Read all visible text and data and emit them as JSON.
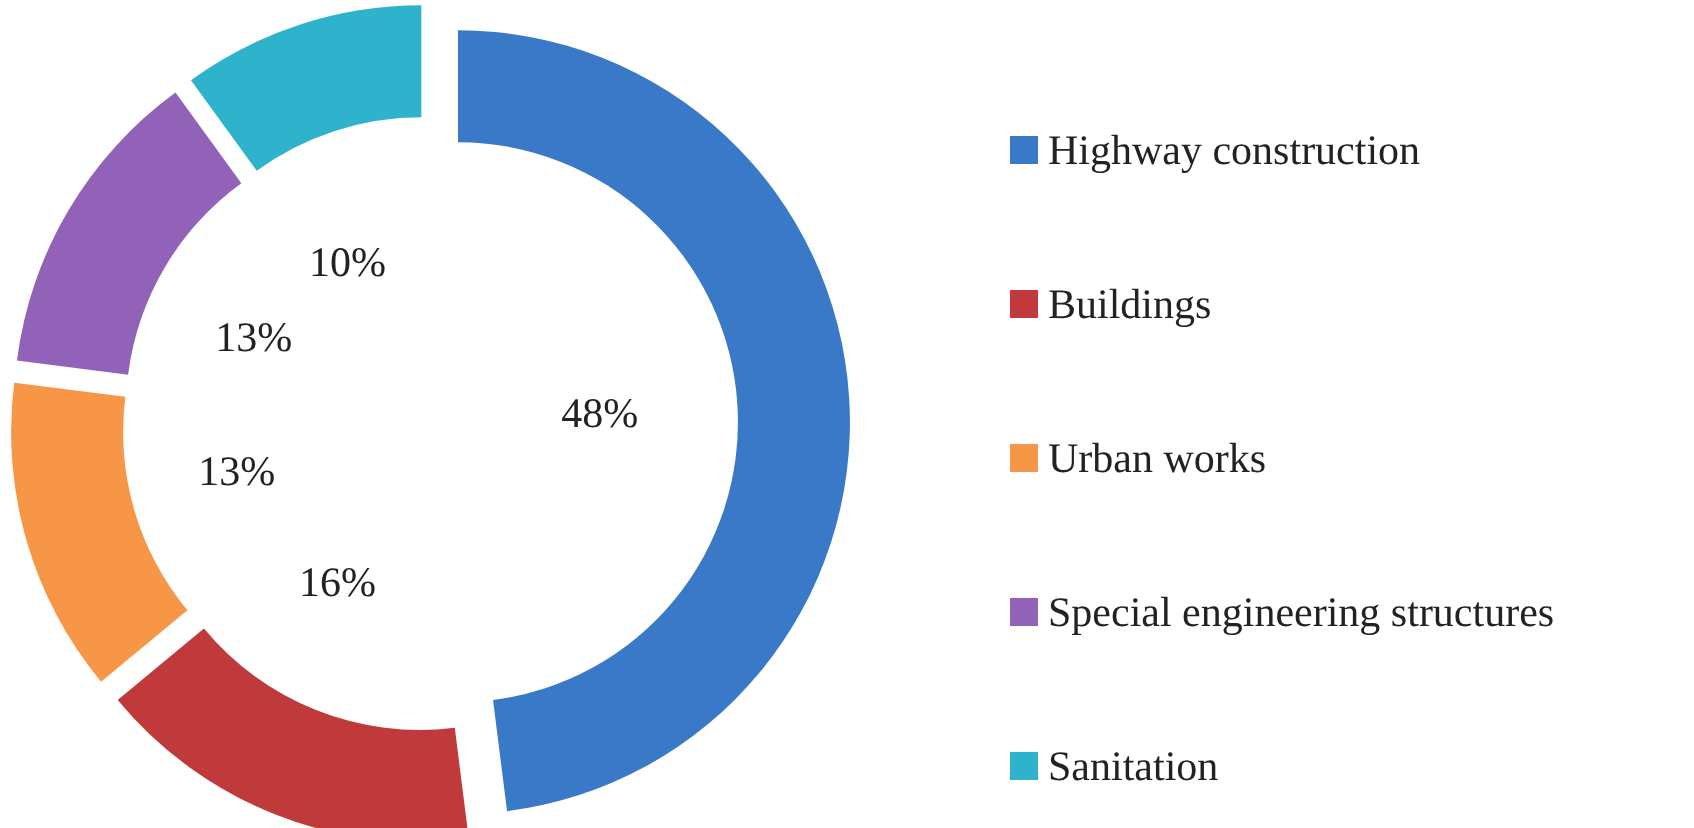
{
  "chart_data": {
    "type": "donut",
    "categories": [
      "Highway construction",
      "Buildings",
      "Urban works",
      "Special engineering structures",
      "Sanitation"
    ],
    "values": [
      48,
      16,
      13,
      13,
      10
    ],
    "colors": [
      "#3a78c8",
      "#c0393b",
      "#f79646",
      "#9262b8",
      "#2fb3cc"
    ],
    "value_labels": [
      "48%",
      "16%",
      "13%",
      "13%",
      "10%"
    ],
    "legend": "right"
  }
}
